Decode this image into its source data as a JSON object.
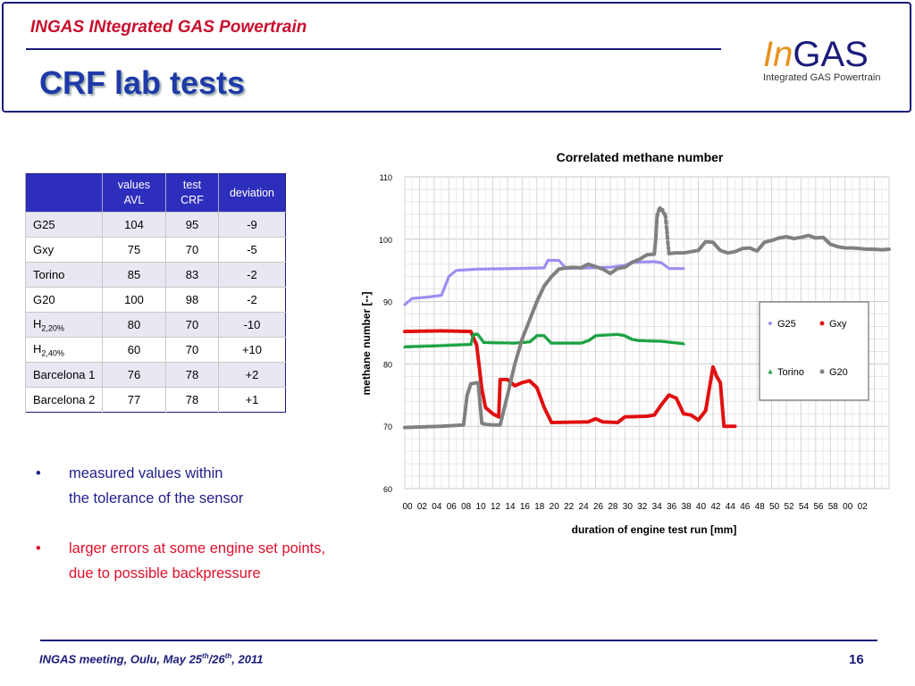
{
  "header": {
    "project": "INGAS INtegrated GAS Powertrain",
    "title": "CRF lab tests",
    "logo_in": "In",
    "logo_gas": "GAS",
    "logo_sub": "Integrated GAS Powertrain"
  },
  "table": {
    "headers": [
      "",
      "values AVL",
      "test CRF",
      "deviation"
    ],
    "rows": [
      {
        "name": "G25",
        "sub": "",
        "avl": "104",
        "crf": "95",
        "dev": "-9"
      },
      {
        "name": "Gxy",
        "sub": "",
        "avl": "75",
        "crf": "70",
        "dev": "-5"
      },
      {
        "name": "Torino",
        "sub": "",
        "avl": "85",
        "crf": "83",
        "dev": "-2"
      },
      {
        "name": "G20",
        "sub": "",
        "avl": "100",
        "crf": "98",
        "dev": "-2"
      },
      {
        "name": "H",
        "sub": "2,20%",
        "avl": "80",
        "crf": "70",
        "dev": "-10"
      },
      {
        "name": "H",
        "sub": "2,40%",
        "avl": "60",
        "crf": "70",
        "dev": "+10"
      },
      {
        "name": "Barcelona 1",
        "sub": "",
        "avl": "76",
        "crf": "78",
        "dev": "+2"
      },
      {
        "name": "Barcelona 2",
        "sub": "",
        "avl": "77",
        "crf": "78",
        "dev": "+1"
      }
    ]
  },
  "bullets": {
    "b1_line1": "measured values within",
    "b1_line2": "the tolerance of the sensor",
    "b2_line1": "larger errors at some engine set points,",
    "b2_line2": "due to possible backpressure",
    "marker": "•"
  },
  "chart_data": {
    "type": "scatter",
    "title": "Correlated methane number",
    "xlabel": "duration of engine test run [mm]",
    "ylabel": "methane number [--]",
    "ylim": [
      60,
      110
    ],
    "yticks": [
      60,
      70,
      80,
      90,
      100,
      110
    ],
    "xticks": [
      "00",
      "02",
      "04",
      "06",
      "08",
      "10",
      "12",
      "14",
      "16",
      "18",
      "20",
      "22",
      "24",
      "26",
      "28",
      "30",
      "32",
      "34",
      "36",
      "38",
      "40",
      "42",
      "44",
      "46",
      "48",
      "50",
      "52",
      "54",
      "56",
      "58",
      "00",
      "02"
    ],
    "grid": true,
    "legend_position": "right",
    "series": [
      {
        "name": "G25",
        "color": "#9b8cf0",
        "marker": "diamond",
        "points": [
          [
            0,
            89.5
          ],
          [
            1,
            90.5
          ],
          [
            3,
            90.7
          ],
          [
            5,
            91
          ],
          [
            6,
            94
          ],
          [
            7,
            95
          ],
          [
            10,
            95.2
          ],
          [
            15,
            95.3
          ],
          [
            19,
            95.4
          ],
          [
            19.5,
            96.6
          ],
          [
            21,
            96.6
          ],
          [
            22,
            95.3
          ],
          [
            28,
            95.5
          ],
          [
            30,
            95.8
          ],
          [
            31,
            96.3
          ],
          [
            34,
            96.4
          ],
          [
            35,
            96.2
          ],
          [
            36,
            95.3
          ],
          [
            38,
            95.3
          ]
        ]
      },
      {
        "name": "Gxy",
        "color": "#e01010",
        "marker": "circle",
        "points": [
          [
            0,
            85.2
          ],
          [
            5,
            85.3
          ],
          [
            9,
            85.2
          ],
          [
            9.8,
            83
          ],
          [
            10.2,
            79
          ],
          [
            10.5,
            76
          ],
          [
            11,
            73
          ],
          [
            12,
            72
          ],
          [
            12.8,
            71.5
          ],
          [
            13,
            77.5
          ],
          [
            14,
            77.5
          ],
          [
            15,
            76.5
          ],
          [
            16,
            77
          ],
          [
            17,
            77.3
          ],
          [
            18,
            76.2
          ],
          [
            19,
            73
          ],
          [
            20,
            70.6
          ],
          [
            25,
            70.7
          ],
          [
            26,
            71.2
          ],
          [
            27,
            70.7
          ],
          [
            29,
            70.6
          ],
          [
            30,
            71.5
          ],
          [
            33,
            71.6
          ],
          [
            34,
            71.8
          ],
          [
            35,
            73.5
          ],
          [
            36,
            75
          ],
          [
            37,
            74.5
          ],
          [
            38,
            72
          ],
          [
            39,
            71.8
          ],
          [
            40,
            71
          ],
          [
            41,
            72.5
          ],
          [
            42,
            79.5
          ],
          [
            42.5,
            78
          ],
          [
            43,
            77
          ],
          [
            43.5,
            70
          ],
          [
            45,
            70
          ]
        ]
      },
      {
        "name": "Torino",
        "color": "#18a040",
        "marker": "triangle",
        "points": [
          [
            0,
            82.8
          ],
          [
            5,
            83
          ],
          [
            9,
            83.2
          ],
          [
            9.3,
            84.8
          ],
          [
            10,
            84.8
          ],
          [
            10.8,
            83.5
          ],
          [
            15,
            83.4
          ],
          [
            17,
            83.6
          ],
          [
            18,
            84.6
          ],
          [
            19,
            84.6
          ],
          [
            20,
            83.4
          ],
          [
            24,
            83.4
          ],
          [
            25,
            83.8
          ],
          [
            26,
            84.6
          ],
          [
            29,
            84.8
          ],
          [
            30,
            84.6
          ],
          [
            31,
            84
          ],
          [
            32,
            83.8
          ],
          [
            35,
            83.7
          ],
          [
            38,
            83.3
          ]
        ]
      },
      {
        "name": "G20",
        "color": "#808080",
        "marker": "circle",
        "points": [
          [
            0,
            69.8
          ],
          [
            5,
            70
          ],
          [
            8,
            70.2
          ],
          [
            8.5,
            75
          ],
          [
            9,
            76.8
          ],
          [
            10,
            77
          ],
          [
            10.5,
            70.5
          ],
          [
            11,
            70.3
          ],
          [
            12,
            70.2
          ],
          [
            13,
            70.2
          ],
          [
            14,
            75
          ],
          [
            15,
            80
          ],
          [
            16,
            84
          ],
          [
            17,
            87
          ],
          [
            18,
            90
          ],
          [
            19,
            92.5
          ],
          [
            20,
            94
          ],
          [
            21,
            95.2
          ],
          [
            22,
            95.4
          ],
          [
            23,
            95.5
          ],
          [
            24,
            95.4
          ],
          [
            25,
            96
          ],
          [
            26,
            95.6
          ],
          [
            27,
            95.2
          ],
          [
            28,
            94.5
          ],
          [
            29,
            95.3
          ],
          [
            30,
            95.5
          ],
          [
            31,
            96.3
          ],
          [
            32,
            96.8
          ],
          [
            33,
            97.5
          ],
          [
            34,
            97.6
          ],
          [
            34.2,
            100
          ],
          [
            34.4,
            104
          ],
          [
            34.8,
            105
          ],
          [
            35.5,
            104
          ],
          [
            36,
            97.7
          ],
          [
            37,
            97.8
          ],
          [
            38,
            97.8
          ],
          [
            39,
            98
          ],
          [
            40,
            98.2
          ],
          [
            41,
            99.6
          ],
          [
            42,
            99.5
          ],
          [
            43,
            98.2
          ],
          [
            44,
            97.8
          ],
          [
            45,
            98
          ],
          [
            46,
            98.5
          ],
          [
            47,
            98.6
          ],
          [
            48,
            98.1
          ],
          [
            49,
            99.5
          ],
          [
            50,
            99.8
          ],
          [
            51,
            100.2
          ],
          [
            52,
            100.4
          ],
          [
            53,
            100.1
          ],
          [
            54,
            100.3
          ],
          [
            55,
            100.6
          ],
          [
            56,
            100.2
          ],
          [
            57,
            100.3
          ],
          [
            58,
            99.2
          ],
          [
            59,
            98.8
          ],
          [
            60,
            98.6
          ],
          [
            61,
            98.6
          ],
          [
            62,
            98.5
          ],
          [
            63,
            98.4
          ],
          [
            64,
            98.4
          ],
          [
            65,
            98.3
          ],
          [
            66,
            98.4
          ]
        ]
      }
    ]
  },
  "footer": {
    "meeting": "INGAS meeting, Oulu, May  25",
    "th1": "th",
    "slash": "/26",
    "th2": "th",
    "year": ", 2011",
    "page": "16"
  }
}
